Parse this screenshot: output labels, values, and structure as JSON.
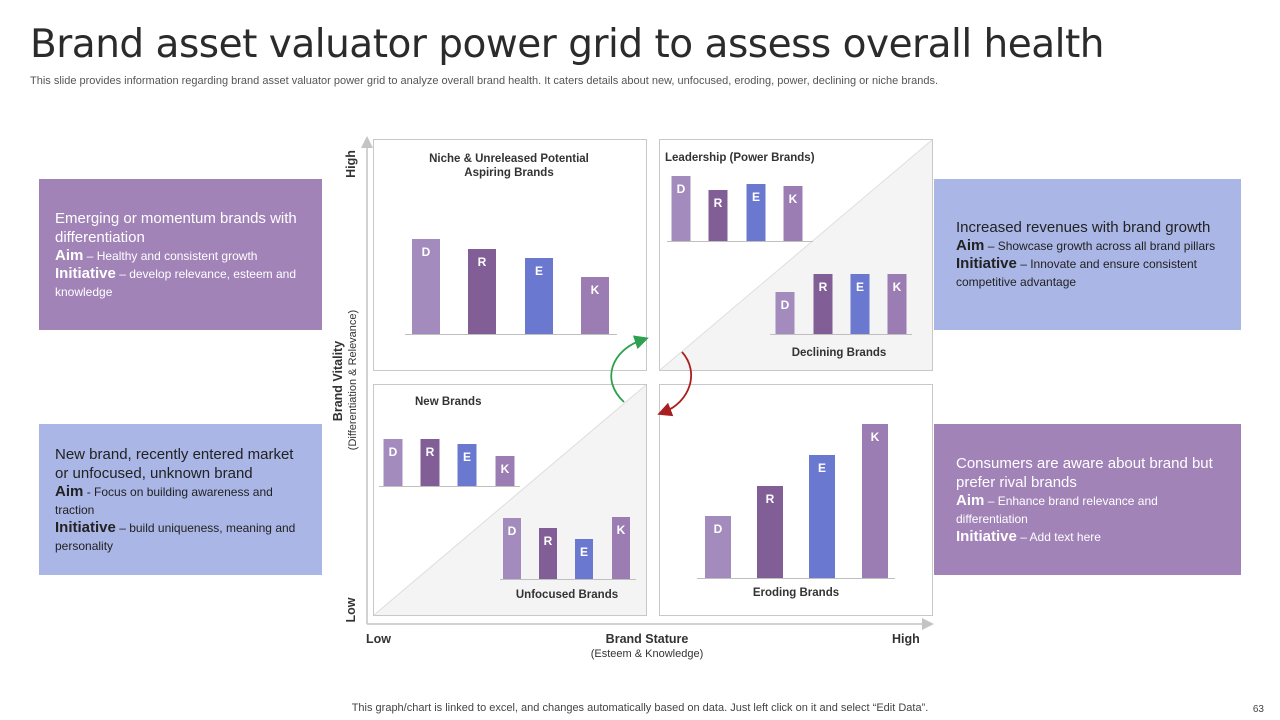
{
  "title": "Brand asset valuator power grid to assess overall health",
  "subtitle": "This slide provides information regarding brand asset valuator power grid to analyze overall brand health. It caters details about new, unfocused, eroding, power, declining or niche brands.",
  "colors": {
    "purple_box": "#a183b8",
    "blue_box": "#aab6e6",
    "bar_D": "#a48bbd",
    "bar_R": "#815e96",
    "bar_E": "#6a79cf",
    "bar_K": "#9b7cb3",
    "arrow_up": "#2ea04f",
    "arrow_down": "#a91e1e"
  },
  "boxes": {
    "top_left": {
      "head": "Emerging or momentum brands with differentiation",
      "aim_label": "Aim",
      "aim_text": "– Healthy and consistent growth",
      "init_label": "Initiative",
      "init_text": "– develop relevance, esteem and knowledge"
    },
    "bottom_left": {
      "head": "New brand, recently entered market or unfocused, unknown brand",
      "aim_label": "Aim",
      "aim_text": "- Focus on building awareness and traction",
      "init_label": "Initiative",
      "init_text": "– build uniqueness, meaning and personality"
    },
    "top_right": {
      "head": "Increased revenues with brand growth",
      "aim_label": "Aim",
      "aim_text": "– Showcase growth across all brand pillars",
      "init_label": "Initiative",
      "init_text": "– Innovate and ensure consistent competitive advantage"
    },
    "bottom_right": {
      "head": "Consumers are aware about brand but prefer rival brands",
      "aim_label": "Aim",
      "aim_text": "– Enhance brand relevance and differentiation",
      "init_label": "Initiative",
      "init_text": "– Add text here"
    }
  },
  "axes": {
    "y_title": "Brand Vitality",
    "y_sub": "(Differentiation & Relevance)",
    "y_high": "High",
    "y_low": "Low",
    "x_title": "Brand Stature",
    "x_sub": "(Esteem & Knowledge)",
    "x_low": "Low",
    "x_high": "High"
  },
  "chart_data": [
    {
      "type": "bar",
      "title": "Niche & Unreleased Potential Aspiring Brands",
      "categories": [
        "D",
        "R",
        "E",
        "K"
      ],
      "values": [
        95,
        85,
        76,
        57
      ]
    },
    {
      "type": "bar",
      "title": "Leadership (Power Brands)",
      "categories": [
        "D",
        "R",
        "E",
        "K"
      ],
      "values": [
        65,
        51,
        57,
        55
      ]
    },
    {
      "type": "bar",
      "title": "Declining Brands",
      "categories": [
        "D",
        "R",
        "E",
        "K"
      ],
      "values": [
        42,
        60,
        60,
        60
      ]
    },
    {
      "type": "bar",
      "title": "New Brands",
      "categories": [
        "D",
        "R",
        "E",
        "K"
      ],
      "values": [
        47,
        47,
        42,
        30
      ]
    },
    {
      "type": "bar",
      "title": "Unfocused Brands",
      "categories": [
        "D",
        "R",
        "E",
        "K"
      ],
      "values": [
        61,
        51,
        40,
        62
      ]
    },
    {
      "type": "bar",
      "title": "Eroding Brands",
      "categories": [
        "D",
        "R",
        "E",
        "K"
      ],
      "values": [
        62,
        92,
        123,
        154
      ]
    }
  ],
  "footer": "This graph/chart is linked to excel, and changes automatically based on data. Just left click on it and select “Edit Data”.",
  "page_number": "63"
}
